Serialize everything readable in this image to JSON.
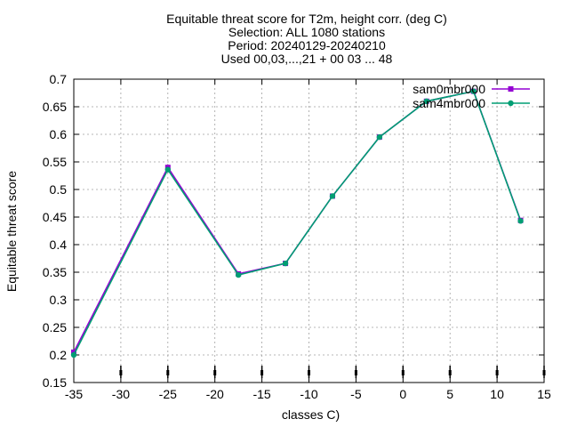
{
  "chart_data": {
    "type": "line",
    "title_lines": [
      "Equitable threat score  for T2m, height corr. (deg C)",
      "Selection: ALL   1080 stations",
      "Period: 20240129-20240210",
      "Used 00,03,...,21 + 00 03 ... 48"
    ],
    "xlabel": "classes C)",
    "ylabel": "Equitable threat score",
    "xlim": [
      -35,
      15
    ],
    "ylim": [
      0.15,
      0.7
    ],
    "xticks": [
      -35,
      -30,
      -25,
      -20,
      -15,
      -10,
      -5,
      0,
      5,
      10,
      15
    ],
    "xtick_labels": [
      "-35",
      "-30",
      "-25",
      "-20",
      "-15",
      "-10",
      "-5",
      "0",
      "5",
      "10",
      "15"
    ],
    "yticks": [
      0.15,
      0.2,
      0.25,
      0.3,
      0.35,
      0.4,
      0.45,
      0.5,
      0.55,
      0.6,
      0.65,
      0.7
    ],
    "ytick_labels": [
      "0.15",
      "0.2",
      "0.25",
      "0.3",
      "0.35",
      "0.4",
      "0.45",
      "0.5",
      "0.55",
      "0.6",
      "0.65",
      "0.7"
    ],
    "grid": true,
    "legend_position": "top-right",
    "bottom_markers_x": [
      -30,
      -25,
      -20,
      -15,
      -10,
      -5,
      0,
      5,
      10,
      15
    ],
    "series": [
      {
        "name": "sam0mbr000",
        "color": "#9400d3",
        "x": [
          -35,
          -25,
          -17.5,
          -12.5,
          -7.5,
          -2.5,
          2.5,
          7.5,
          12.5
        ],
        "values": [
          0.205,
          0.54,
          0.347,
          0.366,
          0.488,
          0.595,
          0.66,
          0.678,
          0.444
        ]
      },
      {
        "name": "sam4mbr000",
        "color": "#009e73",
        "x": [
          -35,
          -25,
          -17.5,
          -12.5,
          -7.5,
          -2.5,
          2.5,
          7.5,
          12.5
        ],
        "values": [
          0.2,
          0.536,
          0.345,
          0.366,
          0.488,
          0.595,
          0.66,
          0.678,
          0.443
        ]
      }
    ]
  }
}
